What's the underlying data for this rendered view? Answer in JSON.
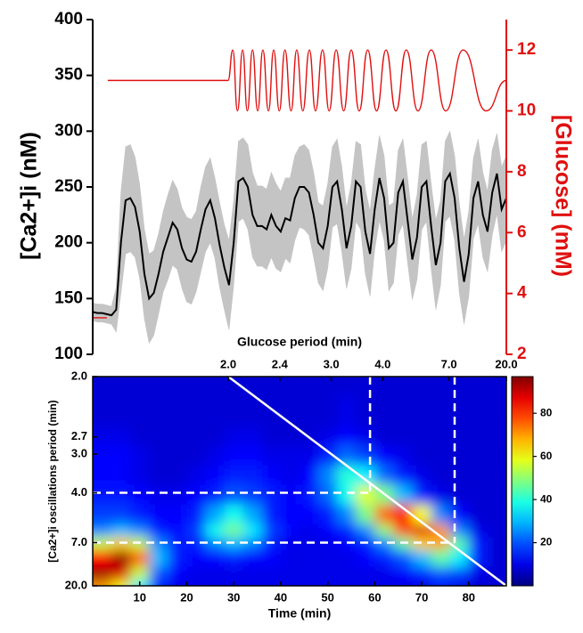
{
  "chart_data": [
    {
      "type": "line",
      "xlim": [
        0,
        88
      ],
      "ylim": [
        100,
        400
      ],
      "yticks": [
        100,
        150,
        200,
        250,
        300,
        350,
        400
      ],
      "ylabel": "[Ca2+]i (nM)",
      "y2lim": [
        2,
        13
      ],
      "y2ticks": [
        2,
        4,
        6,
        8,
        10,
        12
      ],
      "y2label": "[Glucose] (mM)",
      "y2color": "#e01010",
      "series": [
        {
          "color": "#000000",
          "band_color": "#c4c4c4",
          "x": [
            0,
            1,
            2,
            3,
            4,
            5,
            6,
            7,
            8,
            9,
            10,
            11,
            12,
            13,
            14,
            15,
            16,
            17,
            18,
            19,
            20,
            21,
            22,
            23,
            24,
            25,
            26,
            27,
            28,
            29,
            30,
            31,
            32,
            33,
            34,
            35,
            36,
            37,
            38,
            39,
            40,
            41,
            42,
            43,
            44,
            45,
            46,
            47,
            48,
            49,
            50,
            51,
            52,
            53,
            54,
            55,
            56,
            57,
            58,
            59,
            60,
            61,
            62,
            63,
            64,
            65,
            66,
            67,
            68,
            69,
            70,
            71,
            72,
            73,
            74,
            75,
            76,
            77,
            78,
            79,
            80,
            81,
            82,
            83,
            84,
            85,
            86,
            87,
            88
          ],
          "values": [
            138,
            137,
            137,
            136,
            135,
            140,
            200,
            238,
            240,
            232,
            210,
            172,
            150,
            155,
            172,
            192,
            205,
            218,
            212,
            195,
            185,
            183,
            192,
            212,
            230,
            238,
            222,
            198,
            178,
            162,
            200,
            255,
            258,
            250,
            225,
            215,
            215,
            212,
            225,
            215,
            210,
            222,
            220,
            240,
            250,
            250,
            245,
            225,
            200,
            195,
            215,
            250,
            255,
            230,
            195,
            215,
            255,
            250,
            210,
            190,
            230,
            258,
            240,
            195,
            200,
            245,
            255,
            220,
            185,
            205,
            250,
            255,
            215,
            180,
            200,
            255,
            262,
            240,
            195,
            165,
            190,
            240,
            255,
            225,
            210,
            245,
            262,
            230,
            240
          ],
          "error": [
            8,
            8,
            8,
            8,
            8,
            20,
            45,
            48,
            48,
            45,
            42,
            40,
            40,
            38,
            36,
            36,
            38,
            38,
            36,
            36,
            38,
            38,
            36,
            38,
            38,
            38,
            36,
            38,
            38,
            40,
            38,
            36,
            36,
            38,
            38,
            36,
            36,
            36,
            38,
            38,
            36,
            36,
            38,
            38,
            36,
            38,
            38,
            38,
            36,
            38,
            38,
            36,
            38,
            38,
            36,
            38,
            36,
            38,
            38,
            38,
            36,
            38,
            38,
            38,
            36,
            38,
            38,
            38,
            36,
            38,
            38,
            36,
            38,
            40,
            38,
            36,
            38,
            38,
            40,
            38,
            38,
            36,
            38,
            38,
            36,
            38,
            36,
            38,
            38
          ]
        },
        {
          "color": "#e01010",
          "axis": "y2",
          "x": [
            0,
            3,
            3.1,
            3.2,
            28.8,
            29.8,
            30.8,
            31.9,
            32.9,
            34.0,
            35.1,
            36.2,
            37.4,
            38.5,
            39.7,
            40.9,
            42.2,
            43.4,
            44.7,
            46.1,
            47.4,
            48.9,
            50.3,
            51.8,
            53.4,
            55.0,
            56.7,
            58.5,
            60.4,
            62.4,
            64.5,
            66.7,
            69.2,
            72.0,
            75.1,
            78.8,
            83.7,
            88
          ],
          "values": [
            3.2,
            3.2,
            null,
            11,
            11,
            12,
            10,
            12,
            10,
            12,
            10,
            12,
            10,
            12,
            10,
            12,
            10,
            12,
            10,
            12,
            10,
            12,
            10,
            12,
            10,
            12,
            10,
            12,
            10,
            12,
            10,
            12,
            10,
            12,
            10,
            12,
            10,
            11
          ]
        }
      ]
    },
    {
      "type": "heatmap",
      "xlabel": "Time (min)",
      "xlim": [
        0,
        88
      ],
      "xticks": [
        10,
        20,
        30,
        40,
        50,
        60,
        70,
        80
      ],
      "x2label": "Glucose period (min)",
      "x2lim": [
        1.39,
        20
      ],
      "x2scale": "reciprocal",
      "x2ticks": [
        {
          "value": 2,
          "label": "2.0"
        },
        2.4,
        {
          "value": 3,
          "label": "3.0"
        },
        {
          "value": 4,
          "label": "4.0"
        },
        {
          "value": 7,
          "label": "7.0"
        },
        {
          "value": 20,
          "label": "20.0"
        }
      ],
      "ylabel": "[Ca2+]i oscillations period (min)",
      "ylim": [
        2,
        20
      ],
      "yscale": "reciprocal",
      "yticks": [
        {
          "value": 2,
          "label": "2.0"
        },
        2.7,
        {
          "value": 3,
          "label": "3.0"
        },
        {
          "value": 4,
          "label": "4.0"
        },
        {
          "value": 7,
          "label": "7.0"
        },
        {
          "value": 20,
          "label": "20.0"
        }
      ],
      "colormap": "jet",
      "clim": [
        0,
        97
      ],
      "cticks": [
        20,
        40,
        60,
        80
      ],
      "guides": [
        {
          "x": 59,
          "y": 4
        },
        {
          "x": 77,
          "y": 7
        }
      ],
      "identity_line": true,
      "x": [
        2,
        6,
        10,
        14,
        18,
        22,
        26,
        30,
        34,
        38,
        42,
        46,
        50,
        54,
        58,
        62,
        66,
        70,
        74,
        78,
        82,
        86
      ],
      "y": [
        2.0,
        2.4,
        2.7,
        3.0,
        3.5,
        4.0,
        5.0,
        6.0,
        7.0,
        9.0,
        14.0,
        20.0
      ],
      "z": [
        [
          8,
          8,
          8,
          8,
          8,
          8,
          8,
          8,
          8,
          8,
          8,
          8,
          8,
          8,
          8,
          8,
          8,
          8,
          8,
          8,
          8,
          8
        ],
        [
          8,
          8,
          8,
          8,
          8,
          8,
          8,
          8,
          8,
          8,
          8,
          8,
          8,
          10,
          8,
          8,
          8,
          8,
          8,
          8,
          8,
          8
        ],
        [
          10,
          10,
          8,
          8,
          8,
          8,
          8,
          10,
          10,
          8,
          8,
          8,
          10,
          12,
          10,
          8,
          8,
          8,
          8,
          8,
          8,
          8
        ],
        [
          12,
          12,
          10,
          8,
          8,
          8,
          10,
          12,
          12,
          10,
          10,
          10,
          15,
          22,
          18,
          12,
          10,
          8,
          8,
          8,
          8,
          8
        ],
        [
          12,
          12,
          10,
          8,
          8,
          10,
          12,
          15,
          15,
          12,
          10,
          12,
          25,
          40,
          35,
          22,
          14,
          10,
          8,
          8,
          8,
          8
        ],
        [
          14,
          14,
          12,
          10,
          10,
          12,
          15,
          20,
          18,
          15,
          12,
          14,
          22,
          38,
          58,
          48,
          30,
          15,
          10,
          8,
          8,
          8
        ],
        [
          18,
          18,
          15,
          12,
          12,
          15,
          28,
          38,
          28,
          15,
          12,
          12,
          15,
          25,
          48,
          75,
          85,
          60,
          25,
          12,
          8,
          8
        ],
        [
          25,
          30,
          25,
          15,
          12,
          18,
          38,
          48,
          35,
          18,
          12,
          10,
          12,
          15,
          25,
          50,
          78,
          88,
          70,
          25,
          10,
          8
        ],
        [
          55,
          65,
          55,
          25,
          15,
          15,
          25,
          30,
          25,
          15,
          10,
          10,
          10,
          12,
          15,
          25,
          45,
          65,
          70,
          45,
          15,
          8
        ],
        [
          85,
          95,
          75,
          30,
          15,
          12,
          12,
          15,
          12,
          12,
          10,
          10,
          10,
          10,
          12,
          15,
          20,
          30,
          45,
          35,
          15,
          8
        ],
        [
          95,
          88,
          55,
          20,
          12,
          10,
          10,
          10,
          10,
          10,
          10,
          10,
          10,
          10,
          10,
          10,
          12,
          15,
          20,
          18,
          10,
          8
        ],
        [
          70,
          60,
          35,
          15,
          10,
          10,
          10,
          10,
          10,
          10,
          10,
          10,
          10,
          10,
          10,
          10,
          10,
          10,
          12,
          10,
          8,
          8
        ]
      ]
    }
  ]
}
